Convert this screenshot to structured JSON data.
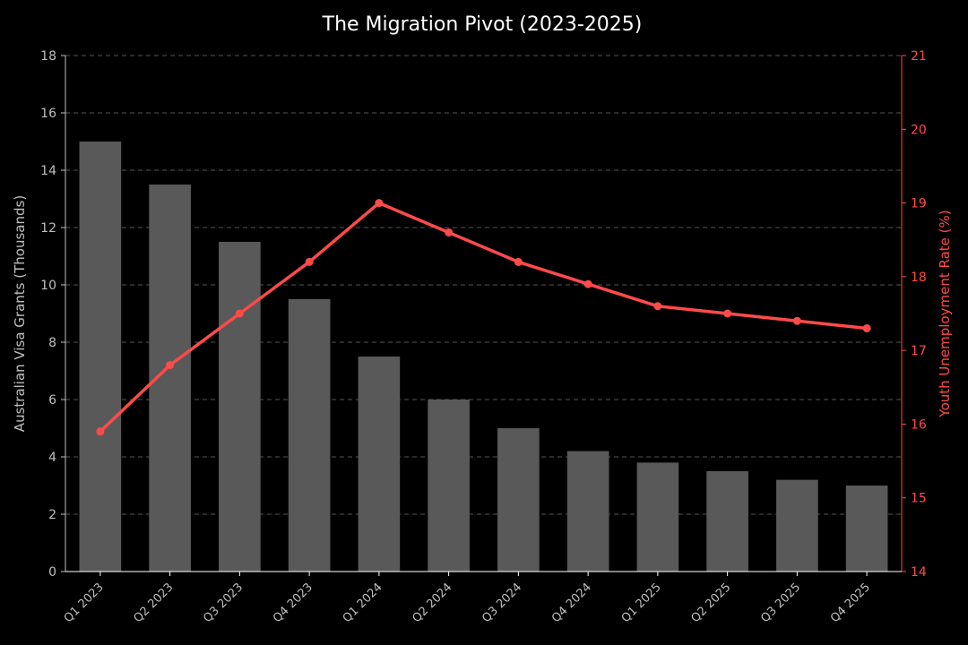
{
  "chart_data": {
    "type": "bar",
    "title": "The Migration Pivot (2023-2025)",
    "categories": [
      "Q1 2023",
      "Q2 2023",
      "Q3 2023",
      "Q4 2023",
      "Q1 2024",
      "Q2 2024",
      "Q3 2024",
      "Q4 2024",
      "Q1 2025",
      "Q2 2025",
      "Q3 2025",
      "Q4 2025"
    ],
    "series": [
      {
        "type": "bar",
        "axis": "left",
        "values": [
          15.0,
          13.5,
          11.5,
          9.5,
          7.5,
          6.0,
          5.0,
          4.2,
          3.8,
          3.5,
          3.2,
          3.0
        ],
        "color": "#595959"
      },
      {
        "type": "line",
        "axis": "right",
        "values": [
          15.9,
          16.8,
          17.5,
          18.2,
          19.0,
          18.6,
          18.2,
          17.9,
          17.6,
          17.5,
          17.4,
          17.3
        ],
        "color": "#ff4a4a"
      }
    ],
    "ylabel": "Australian Visa Grants (Thousands)",
    "y2label": "Youth Unemployment Rate (%)",
    "ylim": [
      0,
      18
    ],
    "y2lim": [
      14,
      21
    ],
    "yticks": [
      0,
      2,
      4,
      6,
      8,
      10,
      12,
      14,
      16,
      18
    ],
    "y2ticks": [
      14,
      15,
      16,
      17,
      18,
      19,
      20,
      21
    ],
    "grid": true,
    "legend": "none",
    "colors": {
      "background": "#000000",
      "bar": "#595959",
      "line": "#ff4a4a",
      "axis_left": "#bfbfbf",
      "axis_right": "#ff4a4a",
      "grid": "#555555",
      "title": "#ffffff"
    }
  }
}
